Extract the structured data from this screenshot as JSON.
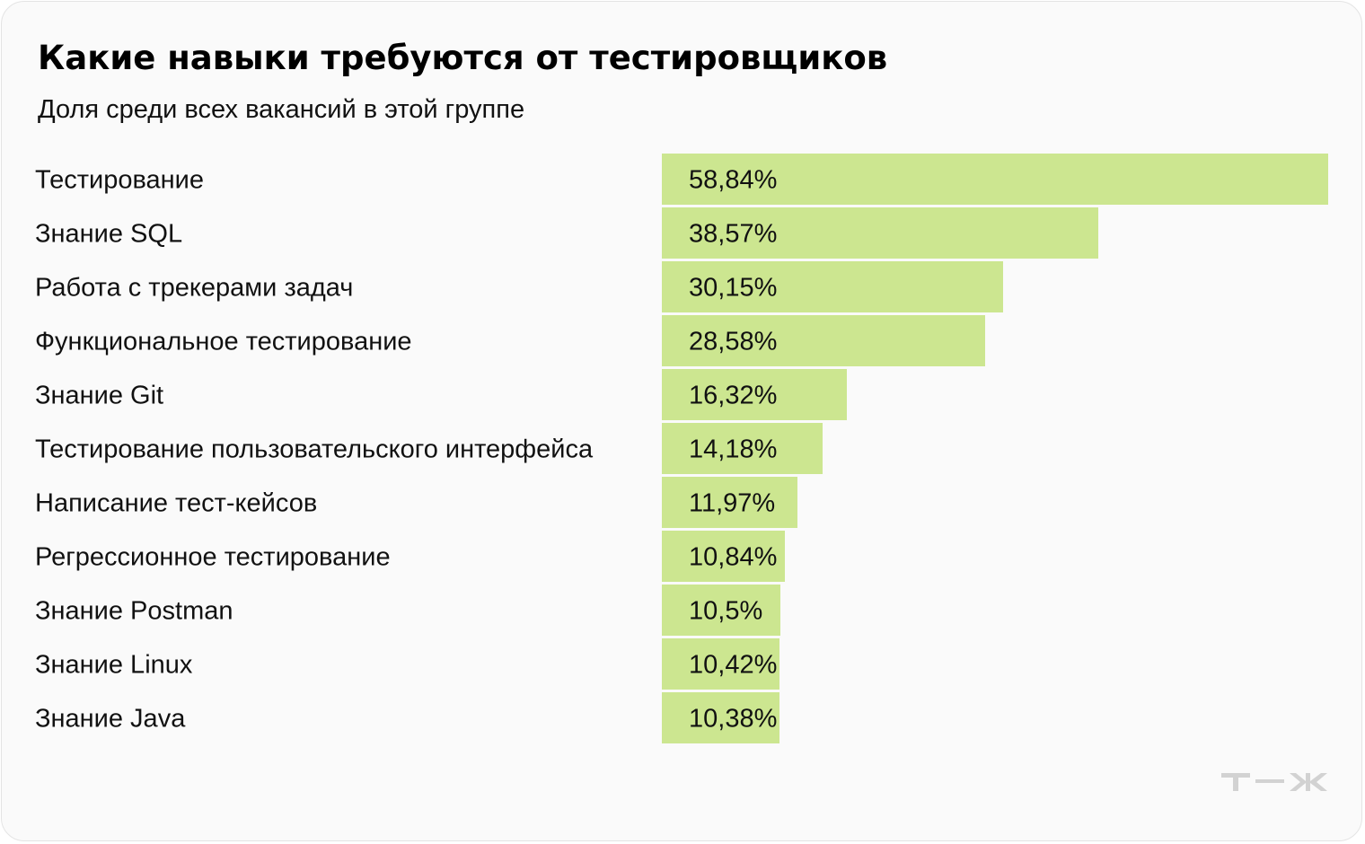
{
  "header": {
    "title": "Какие навыки требуются от тестировщиков",
    "subtitle": "Доля среди всех вакансий в этой группе"
  },
  "logo": {
    "text": "т—ж"
  },
  "colors": {
    "bar": "#cce690",
    "background": "#fafafa",
    "logo": "#d2d2d2"
  },
  "chart_data": {
    "type": "bar",
    "orientation": "horizontal",
    "title": "Какие навыки требуются от тестировщиков",
    "subtitle": "Доля среди всех вакансий в этой группе",
    "unit": "%",
    "categories": [
      "Тестирование",
      "Знание SQL",
      "Работа с трекерами задач",
      "Функциональное тестирование",
      "Знание Git",
      "Тестирование пользовательского интерфейса",
      "Написание тест-кейсов",
      "Регрессионное тестирование",
      "Знание Postman",
      "Знание Linux",
      "Знание Java"
    ],
    "values": [
      58.84,
      38.57,
      30.15,
      28.58,
      16.32,
      14.18,
      11.97,
      10.84,
      10.5,
      10.42,
      10.38
    ],
    "value_labels": [
      "58,84%",
      "38,57%",
      "30,15%",
      "28,58%",
      "16,32%",
      "14,18%",
      "11,97%",
      "10,84%",
      "10,5%",
      "10,42%",
      "10,38%"
    ],
    "xlim": [
      0,
      58.84
    ],
    "grid": false,
    "legend": "none"
  }
}
